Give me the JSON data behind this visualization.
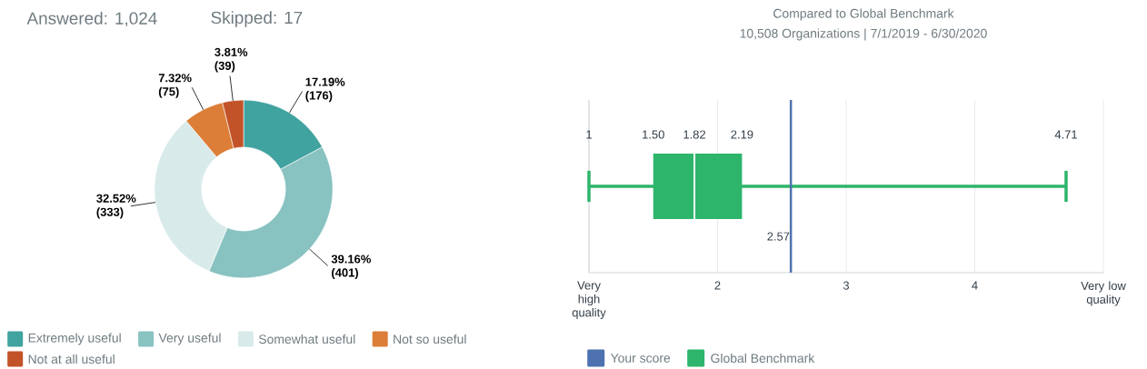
{
  "chart_data": [
    {
      "type": "donut",
      "title": "Answered: 1,024",
      "subtitle": "Skipped: 17",
      "categories": [
        "Extremely useful",
        "Very useful",
        "Somewhat useful",
        "Not so useful",
        "Not at all useful"
      ],
      "values": [
        17.19,
        39.16,
        32.52,
        7.32,
        3.81
      ],
      "colors": [
        "#41a3a0",
        "#88c2c1",
        "#d8ebea",
        "#dc7e38",
        "#c25328"
      ],
      "value_labels": [
        "17.19% (176)",
        "39.16% (401)",
        "32.52% (333)",
        "7.32% (75)",
        "3.81% (39)"
      ],
      "legend": "bottom"
    },
    {
      "type": "box",
      "title": "Compared to Global Benchmark",
      "subtitle": "10,508 Organizations | 7/1/2019 - 6/30/2020",
      "orientation": "horizontal",
      "categories": [
        null
      ],
      "series": [
        {
          "name": "Global Benchmark",
          "color": "#2db56b",
          "boxes": [
            {
              "low": 1,
              "q1": 1.5,
              "median": 1.82,
              "q3": 2.19,
              "high": 4.71
            }
          ]
        }
      ],
      "xlim": [
        1,
        5
      ],
      "xticks": [
        {
          "value": 1,
          "label": "Very high quality"
        },
        2,
        3,
        4,
        {
          "value": 5,
          "label": "Very low quality"
        }
      ],
      "grid": "x",
      "ref_lines": [
        {
          "axis": "x",
          "value": 2.57,
          "label": "Your score",
          "color": "#4e72b0"
        }
      ],
      "annotations": [
        "1",
        "1.50",
        "1.82",
        "2.19",
        "4.71",
        {
          "text": "2.57",
          "x": 2.57
        }
      ],
      "legend": "bottom"
    }
  ]
}
